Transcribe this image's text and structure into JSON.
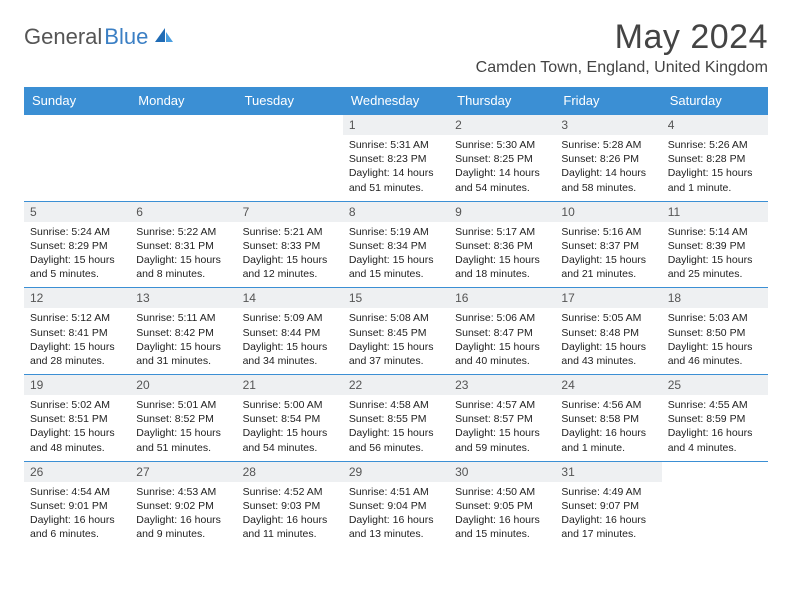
{
  "logo": {
    "text1": "General",
    "text2": "Blue"
  },
  "title": "May 2024",
  "location": "Camden Town, England, United Kingdom",
  "colors": {
    "header_bg": "#3b8fd4",
    "header_text": "#ffffff",
    "daynum_bg": "#eef0f2",
    "border": "#3b8fd4",
    "logo_gray": "#555555",
    "logo_blue": "#3b7fc4"
  },
  "day_headers": [
    "Sunday",
    "Monday",
    "Tuesday",
    "Wednesday",
    "Thursday",
    "Friday",
    "Saturday"
  ],
  "weeks": [
    [
      null,
      null,
      null,
      {
        "n": "1",
        "sr": "5:31 AM",
        "ss": "8:23 PM",
        "dl": "14 hours and 51 minutes."
      },
      {
        "n": "2",
        "sr": "5:30 AM",
        "ss": "8:25 PM",
        "dl": "14 hours and 54 minutes."
      },
      {
        "n": "3",
        "sr": "5:28 AM",
        "ss": "8:26 PM",
        "dl": "14 hours and 58 minutes."
      },
      {
        "n": "4",
        "sr": "5:26 AM",
        "ss": "8:28 PM",
        "dl": "15 hours and 1 minute."
      }
    ],
    [
      {
        "n": "5",
        "sr": "5:24 AM",
        "ss": "8:29 PM",
        "dl": "15 hours and 5 minutes."
      },
      {
        "n": "6",
        "sr": "5:22 AM",
        "ss": "8:31 PM",
        "dl": "15 hours and 8 minutes."
      },
      {
        "n": "7",
        "sr": "5:21 AM",
        "ss": "8:33 PM",
        "dl": "15 hours and 12 minutes."
      },
      {
        "n": "8",
        "sr": "5:19 AM",
        "ss": "8:34 PM",
        "dl": "15 hours and 15 minutes."
      },
      {
        "n": "9",
        "sr": "5:17 AM",
        "ss": "8:36 PM",
        "dl": "15 hours and 18 minutes."
      },
      {
        "n": "10",
        "sr": "5:16 AM",
        "ss": "8:37 PM",
        "dl": "15 hours and 21 minutes."
      },
      {
        "n": "11",
        "sr": "5:14 AM",
        "ss": "8:39 PM",
        "dl": "15 hours and 25 minutes."
      }
    ],
    [
      {
        "n": "12",
        "sr": "5:12 AM",
        "ss": "8:41 PM",
        "dl": "15 hours and 28 minutes."
      },
      {
        "n": "13",
        "sr": "5:11 AM",
        "ss": "8:42 PM",
        "dl": "15 hours and 31 minutes."
      },
      {
        "n": "14",
        "sr": "5:09 AM",
        "ss": "8:44 PM",
        "dl": "15 hours and 34 minutes."
      },
      {
        "n": "15",
        "sr": "5:08 AM",
        "ss": "8:45 PM",
        "dl": "15 hours and 37 minutes."
      },
      {
        "n": "16",
        "sr": "5:06 AM",
        "ss": "8:47 PM",
        "dl": "15 hours and 40 minutes."
      },
      {
        "n": "17",
        "sr": "5:05 AM",
        "ss": "8:48 PM",
        "dl": "15 hours and 43 minutes."
      },
      {
        "n": "18",
        "sr": "5:03 AM",
        "ss": "8:50 PM",
        "dl": "15 hours and 46 minutes."
      }
    ],
    [
      {
        "n": "19",
        "sr": "5:02 AM",
        "ss": "8:51 PM",
        "dl": "15 hours and 48 minutes."
      },
      {
        "n": "20",
        "sr": "5:01 AM",
        "ss": "8:52 PM",
        "dl": "15 hours and 51 minutes."
      },
      {
        "n": "21",
        "sr": "5:00 AM",
        "ss": "8:54 PM",
        "dl": "15 hours and 54 minutes."
      },
      {
        "n": "22",
        "sr": "4:58 AM",
        "ss": "8:55 PM",
        "dl": "15 hours and 56 minutes."
      },
      {
        "n": "23",
        "sr": "4:57 AM",
        "ss": "8:57 PM",
        "dl": "15 hours and 59 minutes."
      },
      {
        "n": "24",
        "sr": "4:56 AM",
        "ss": "8:58 PM",
        "dl": "16 hours and 1 minute."
      },
      {
        "n": "25",
        "sr": "4:55 AM",
        "ss": "8:59 PM",
        "dl": "16 hours and 4 minutes."
      }
    ],
    [
      {
        "n": "26",
        "sr": "4:54 AM",
        "ss": "9:01 PM",
        "dl": "16 hours and 6 minutes."
      },
      {
        "n": "27",
        "sr": "4:53 AM",
        "ss": "9:02 PM",
        "dl": "16 hours and 9 minutes."
      },
      {
        "n": "28",
        "sr": "4:52 AM",
        "ss": "9:03 PM",
        "dl": "16 hours and 11 minutes."
      },
      {
        "n": "29",
        "sr": "4:51 AM",
        "ss": "9:04 PM",
        "dl": "16 hours and 13 minutes."
      },
      {
        "n": "30",
        "sr": "4:50 AM",
        "ss": "9:05 PM",
        "dl": "16 hours and 15 minutes."
      },
      {
        "n": "31",
        "sr": "4:49 AM",
        "ss": "9:07 PM",
        "dl": "16 hours and 17 minutes."
      },
      null
    ]
  ],
  "labels": {
    "sunrise": "Sunrise:",
    "sunset": "Sunset:",
    "daylight": "Daylight:"
  }
}
